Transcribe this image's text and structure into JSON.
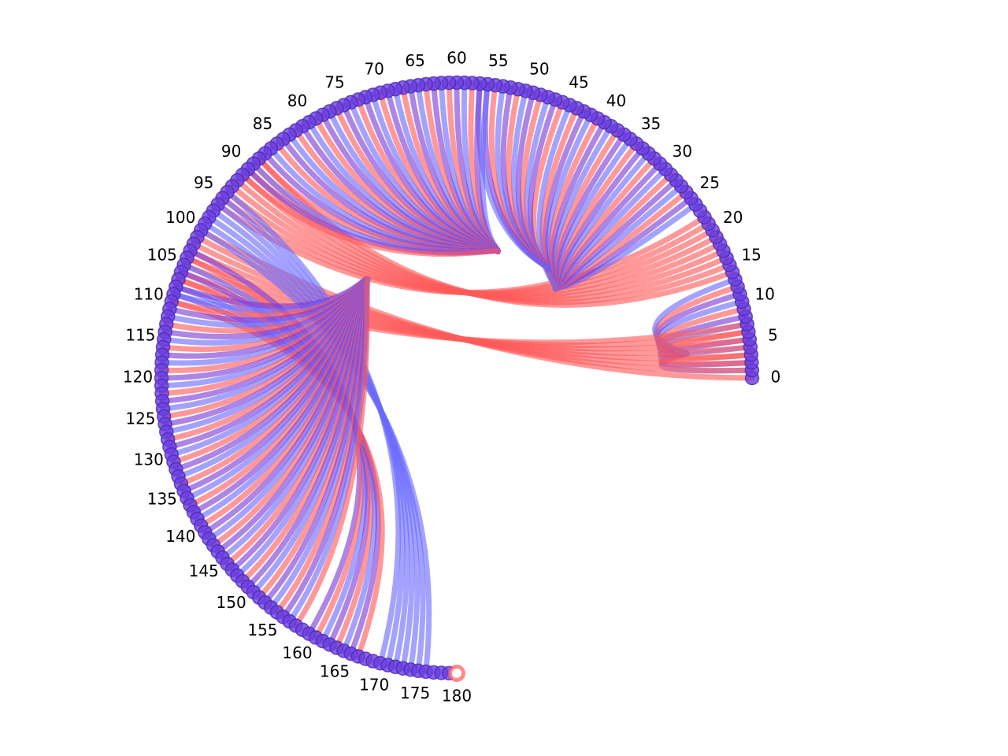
{
  "diagram": {
    "type": "arc-chord",
    "node_count": 181,
    "angle_start_deg": 0,
    "angle_end_deg": 270,
    "tick_labels": [
      "0",
      "5",
      "10",
      "15",
      "20",
      "25",
      "30",
      "35",
      "40",
      "45",
      "50",
      "55",
      "60",
      "65",
      "70",
      "75",
      "80",
      "85",
      "90",
      "95",
      "100",
      "105",
      "110",
      "115",
      "120",
      "125",
      "130",
      "135",
      "140",
      "145",
      "150",
      "155",
      "160",
      "165",
      "170",
      "175",
      "180"
    ],
    "colors": {
      "red": "#ff5a5a",
      "blue": "#6a6aff",
      "purple": "#7a3ad8",
      "node_fill": "#6a3ce0",
      "node_stroke": "#4a2ab0"
    },
    "bundles": [
      {
        "from": [
          1,
          2,
          3,
          4,
          5,
          6,
          7,
          8,
          9,
          10,
          11,
          12,
          13
        ],
        "to_center": {
          "angle": 6,
          "depth": 0.22
        },
        "colors": [
          "blue",
          "purple",
          "red"
        ]
      },
      {
        "from": [
          0,
          1,
          2,
          3,
          4,
          5,
          6,
          7
        ],
        "to": [
          100,
          101,
          102,
          103,
          104,
          105,
          106,
          107
        ],
        "colors": [
          "red"
        ]
      },
      {
        "from": [
          14,
          15,
          16,
          17,
          18,
          19,
          20,
          21,
          22
        ],
        "to": [
          88,
          89,
          90,
          91,
          92,
          93,
          94,
          95,
          96
        ],
        "colors": [
          "red"
        ]
      },
      {
        "from": [
          24,
          25,
          26,
          27,
          28,
          29,
          30,
          31,
          32,
          33,
          34,
          35,
          36,
          37,
          38,
          39,
          40,
          41,
          42,
          43,
          44,
          45
        ],
        "to_center": {
          "angle": 42,
          "depth": 0.55
        },
        "colors": [
          "blue",
          "purple",
          "red"
        ]
      },
      {
        "from": [
          46,
          47,
          48,
          49,
          50,
          51,
          52,
          53,
          54,
          55,
          56,
          57
        ],
        "to_center": {
          "angle": 50,
          "depth": 0.52
        },
        "colors": [
          "red",
          "purple",
          "blue"
        ]
      },
      {
        "from": [
          56,
          57,
          58,
          59,
          60,
          61,
          62,
          63,
          64,
          65,
          66,
          67,
          68,
          69,
          70,
          71,
          72,
          73,
          74,
          75,
          76,
          77,
          78,
          79,
          80,
          81,
          82,
          83,
          84,
          85,
          86,
          87,
          88,
          89,
          90,
          91
        ],
        "to_center": {
          "angle": 72,
          "depth": 0.55
        },
        "colors": [
          "blue",
          "purple",
          "red"
        ]
      },
      {
        "from": [
          94,
          95,
          96,
          97,
          98,
          99,
          100
        ],
        "to": [
          170,
          171,
          172,
          173,
          174,
          175,
          176,
          177,
          178
        ],
        "colors": [
          "blue"
        ]
      },
      {
        "from": [
          103,
          104,
          105,
          106,
          107,
          108,
          109,
          110
        ],
        "to": [
          160,
          161,
          162,
          163,
          164,
          165,
          166,
          167,
          168,
          169
        ],
        "colors": [
          "purple",
          "red",
          "blue"
        ]
      },
      {
        "from": [
          108,
          109,
          110,
          111,
          112,
          113,
          114,
          115,
          116,
          117,
          118,
          119,
          120,
          121,
          122,
          123,
          124,
          125,
          126,
          127,
          128,
          129,
          130,
          131,
          132,
          133,
          134,
          135,
          136,
          137,
          138,
          139,
          140,
          141,
          142,
          143,
          144,
          145,
          146,
          147,
          148,
          149,
          150,
          151,
          152,
          153,
          154,
          155,
          156,
          157,
          158
        ],
        "to_center": {
          "angle": 132,
          "depth": 0.55
        },
        "colors": [
          "purple",
          "blue",
          "red"
        ]
      }
    ]
  }
}
